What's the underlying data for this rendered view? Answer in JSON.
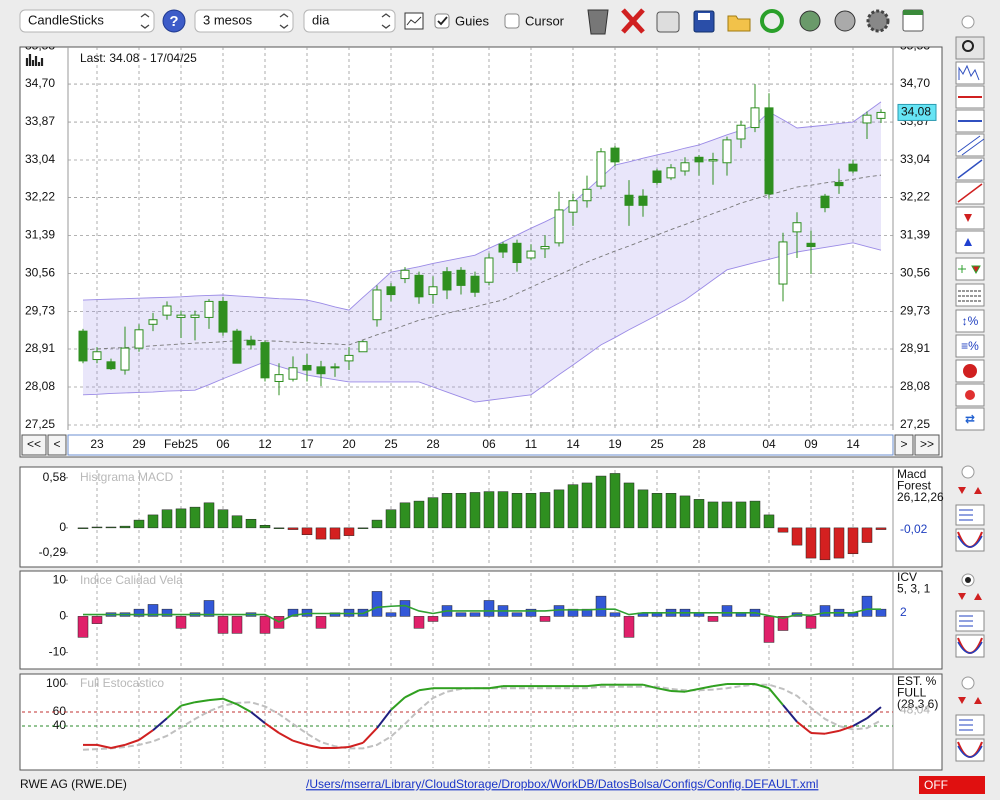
{
  "toolbar": {
    "chart_style": "CandleSticks",
    "period": "3 mesos",
    "interval": "dia",
    "guides": "Guies",
    "cursor": "Cursor"
  },
  "navigation": {
    "first": "<<",
    "previous": "<",
    "next": ">",
    "last": ">>"
  },
  "footer": {
    "symbol": "RWE AG (RWE.DE)",
    "config_path": "/Users/mserra/Library/CloudStorage/Dropbox/WorkDB/DatosBolsa/Configs/Config.DEFAULT.xml",
    "status": "OFF"
  },
  "chart_data": [
    {
      "type": "candlestick",
      "annotation": "Last: 34.08 - 17/04/25",
      "last_label": "34,08",
      "categories": [
        null,
        "23",
        null,
        null,
        "29",
        null,
        null,
        "Feb25",
        null,
        null,
        "06",
        null,
        null,
        "12",
        null,
        null,
        "17",
        null,
        null,
        "20",
        null,
        null,
        "25",
        null,
        null,
        "28",
        null,
        null,
        null,
        "06",
        null,
        null,
        "11",
        null,
        null,
        "14",
        null,
        null,
        "19",
        null,
        null,
        "25",
        null,
        null,
        "28",
        null,
        null,
        null,
        null,
        "04",
        null,
        null,
        "09",
        null,
        null,
        "14",
        null,
        null
      ],
      "open": [
        29.3,
        28.68,
        28.63,
        28.45,
        28.93,
        29.45,
        29.65,
        29.6,
        29.6,
        29.6,
        29.95,
        29.3,
        29.1,
        29.05,
        28.2,
        28.25,
        28.55,
        28.52,
        28.5,
        28.65,
        28.85,
        29.55,
        30.27,
        30.45,
        30.52,
        30.1,
        30.6,
        30.63,
        30.5,
        30.37,
        31.2,
        31.22,
        30.9,
        31.1,
        31.23,
        31.9,
        32.15,
        32.47,
        33.3,
        32.27,
        32.25,
        32.8,
        32.65,
        32.8,
        33.1,
        33.02,
        32.98,
        33.5,
        33.75,
        34.18,
        30.33,
        31.47,
        31.22,
        32.25,
        32.55,
        32.95,
        33.85,
        33.95
      ],
      "high": [
        29.35,
        28.95,
        28.7,
        29.4,
        29.45,
        29.7,
        29.95,
        29.75,
        29.75,
        30.0,
        30.05,
        29.35,
        29.2,
        29.1,
        28.6,
        28.75,
        28.8,
        28.65,
        28.6,
        28.95,
        29.1,
        30.3,
        30.35,
        30.7,
        30.6,
        30.5,
        30.7,
        30.7,
        30.6,
        31.0,
        31.25,
        31.3,
        31.2,
        31.4,
        32.35,
        32.3,
        32.7,
        33.3,
        33.35,
        32.6,
        32.4,
        32.85,
        32.95,
        33.1,
        33.15,
        33.2,
        33.55,
        33.9,
        34.7,
        34.5,
        31.45,
        31.9,
        31.5,
        32.3,
        32.85,
        33.05,
        34.1,
        34.15
      ],
      "low": [
        28.6,
        28.6,
        28.45,
        28.35,
        28.85,
        29.3,
        29.55,
        29.15,
        29.1,
        29.35,
        29.2,
        28.6,
        28.9,
        28.2,
        27.9,
        28.2,
        28.2,
        28.1,
        28.3,
        28.45,
        28.85,
        29.4,
        29.95,
        30.35,
        29.9,
        29.9,
        30.0,
        30.1,
        30.05,
        30.3,
        30.9,
        30.6,
        30.85,
        30.9,
        31.15,
        31.6,
        32.0,
        32.4,
        32.9,
        31.6,
        31.8,
        32.5,
        32.6,
        32.7,
        32.7,
        32.5,
        32.7,
        33.3,
        33.65,
        32.2,
        29.95,
        30.9,
        30.55,
        31.9,
        32.3,
        32.75,
        33.5,
        33.85
      ],
      "close": [
        28.65,
        28.85,
        28.48,
        28.93,
        29.33,
        29.55,
        29.85,
        29.65,
        29.65,
        29.95,
        29.28,
        28.6,
        29.0,
        28.28,
        28.35,
        28.5,
        28.45,
        28.37,
        28.52,
        28.77,
        29.07,
        30.2,
        30.1,
        30.63,
        30.05,
        30.27,
        30.2,
        30.3,
        30.15,
        30.9,
        31.03,
        30.8,
        31.05,
        31.15,
        31.95,
        32.15,
        32.4,
        33.22,
        33.0,
        32.05,
        32.05,
        32.55,
        32.87,
        32.98,
        33.0,
        33.05,
        33.48,
        33.8,
        34.18,
        32.3,
        31.25,
        31.67,
        31.15,
        32.0,
        32.48,
        32.8,
        34.02,
        34.08
      ],
      "upper_band": [
        29.98,
        29.99,
        30.0,
        30.01,
        30.02,
        30.03,
        30.04,
        30.05,
        30.07,
        30.08,
        30.09,
        30.07,
        30.05,
        30.03,
        30.01,
        30.0,
        29.98,
        29.91,
        29.83,
        29.76,
        30.04,
        30.31,
        30.59,
        30.65,
        30.71,
        30.78,
        30.84,
        30.9,
        30.96,
        31.11,
        31.25,
        31.4,
        31.55,
        31.69,
        31.84,
        32.11,
        32.38,
        32.66,
        32.93,
        33.0,
        33.08,
        33.15,
        33.22,
        33.3,
        33.37,
        33.48,
        33.59,
        33.69,
        33.8,
        34.09,
        33.92,
        33.74,
        33.77,
        33.8,
        33.84,
        33.87,
        34.09,
        34.31
      ],
      "middle_band": [
        28.89,
        28.91,
        28.93,
        28.94,
        28.96,
        28.98,
        29.0,
        29.02,
        29.04,
        29.05,
        29.07,
        29.09,
        29.11,
        29.09,
        29.08,
        29.06,
        29.05,
        29.03,
        29.02,
        29.0,
        29.11,
        29.22,
        29.32,
        29.43,
        29.54,
        29.61,
        29.69,
        29.76,
        29.83,
        29.91,
        29.98,
        30.12,
        30.26,
        30.4,
        30.53,
        30.67,
        30.81,
        30.93,
        31.05,
        31.16,
        31.28,
        31.4,
        31.52,
        31.63,
        31.75,
        31.87,
        31.98,
        32.1,
        32.19,
        32.28,
        32.36,
        32.45,
        32.49,
        32.54,
        32.58,
        32.62,
        32.67,
        32.71
      ],
      "lower_band": [
        27.91,
        27.92,
        27.94,
        27.95,
        27.96,
        27.97,
        27.99,
        28.0,
        28.01,
        28.13,
        28.26,
        28.38,
        28.51,
        28.63,
        28.53,
        28.44,
        28.34,
        28.29,
        28.24,
        28.19,
        28.19,
        28.19,
        28.19,
        28.19,
        28.19,
        28.08,
        27.97,
        27.86,
        27.75,
        27.79,
        27.83,
        27.87,
        27.91,
        28.13,
        28.35,
        28.56,
        28.78,
        29.0,
        29.16,
        29.33,
        29.49,
        29.65,
        29.82,
        29.98,
        30.2,
        30.42,
        30.64,
        30.72,
        30.8,
        30.87,
        30.95,
        31.03,
        31.08,
        31.13,
        31.18,
        31.23,
        31.15,
        31.07
      ],
      "ylim": [
        27.14,
        35.51
      ],
      "yticks": [
        {
          "value": 27.25,
          "label": "27,25"
        },
        {
          "value": 28.08,
          "label": "28,08"
        },
        {
          "value": 28.91,
          "label": "28,91"
        },
        {
          "value": 29.73,
          "label": "29,73"
        },
        {
          "value": 30.56,
          "label": "30,56"
        },
        {
          "value": 31.39,
          "label": "31,39"
        },
        {
          "value": 32.22,
          "label": "32,22"
        },
        {
          "value": 33.04,
          "label": "33,04"
        },
        {
          "value": 33.87,
          "label": "33,87"
        },
        {
          "value": 34.7,
          "label": "34,70"
        },
        {
          "value": 35.53,
          "label": "35,53"
        }
      ],
      "grid": true,
      "candle_color": "#2f8f20",
      "band_color": "#9b8be6",
      "middle_color": "#777777",
      "last_color": "#66e4f4"
    },
    {
      "type": "bar",
      "title": "Histgrama MACD",
      "legend": [
        "Macd",
        "Forest",
        "26,12,26"
      ],
      "current_label": "-0,02",
      "values": [
        0.0,
        0.01,
        0.01,
        0.02,
        0.09,
        0.15,
        0.21,
        0.22,
        0.24,
        0.29,
        0.21,
        0.14,
        0.1,
        0.03,
        0.0,
        -0.02,
        -0.08,
        -0.13,
        -0.13,
        -0.09,
        0.0,
        0.09,
        0.21,
        0.29,
        0.31,
        0.35,
        0.4,
        0.4,
        0.41,
        0.42,
        0.42,
        0.4,
        0.4,
        0.41,
        0.44,
        0.5,
        0.52,
        0.6,
        0.63,
        0.52,
        0.44,
        0.4,
        0.4,
        0.37,
        0.33,
        0.3,
        0.3,
        0.3,
        0.31,
        0.15,
        -0.05,
        -0.2,
        -0.35,
        -0.37,
        -0.35,
        -0.3,
        -0.17,
        -0.02
      ],
      "ylim": [
        -0.43,
        0.67
      ],
      "yticks": [
        {
          "value": 0.58,
          "label": "0,58"
        },
        0,
        {
          "value": -0.29,
          "label": "-0,29"
        }
      ],
      "positive_color": "#2f8f20",
      "negative_color": "#d42020",
      "current_color": "#2040c0"
    },
    {
      "type": "bar_line",
      "title": "Indice Calidad Vela",
      "legend": [
        "ICV",
        "5, 3, 1"
      ],
      "current_label": "2",
      "values": [
        -5.8,
        -2,
        1,
        1,
        2,
        3.3,
        2,
        -3.3,
        1,
        4.4,
        -4.7,
        -4.7,
        1,
        -4.7,
        -3.3,
        2,
        2,
        -3.3,
        1,
        2,
        2,
        6.9,
        1,
        4.4,
        -3.3,
        -1.4,
        3,
        1,
        1,
        4.4,
        3,
        1,
        2,
        -1.4,
        3,
        2,
        2,
        5.6,
        1,
        -5.8,
        1,
        1,
        2,
        2,
        1,
        -1.4,
        3,
        1,
        2,
        -7.2,
        -3.9,
        1,
        -3.3,
        3,
        2,
        1,
        5.6,
        2
      ],
      "line_values": [
        0.5,
        0.5,
        0.5,
        0.5,
        0.5,
        0.5,
        0.5,
        0.5,
        0.5,
        0.5,
        0.5,
        0.5,
        0.5,
        0.5,
        -1.5,
        0.3,
        0.8,
        0.8,
        0.8,
        0.8,
        0.8,
        2.5,
        2.8,
        3.0,
        1.5,
        0.8,
        1.5,
        1.5,
        1.5,
        1.5,
        1.5,
        1.5,
        1.5,
        1.5,
        1.8,
        1.8,
        1.8,
        2.0,
        2.0,
        0.5,
        1.0,
        1.0,
        1.0,
        1.0,
        1.0,
        1.0,
        1.0,
        1.0,
        1.0,
        0.2,
        -0.5,
        0.5,
        0.3,
        1.0,
        1.0,
        1.0,
        2.0,
        2.0
      ],
      "ylim": [
        -14,
        12
      ],
      "yticks": [
        10,
        0,
        -10
      ],
      "positive_color": "#3358d8",
      "negative_color": "#e0206a",
      "line_color": "#30a030",
      "current_color": "#2040c0"
    },
    {
      "type": "stochastic",
      "title": "Full Estocastico",
      "legend": [
        "EST. %",
        "FULL",
        "(28,3,6)"
      ],
      "current_label": "48,04",
      "k_values": [
        13,
        13,
        8.6,
        13,
        20,
        34,
        51,
        69,
        74,
        77,
        79,
        71,
        60,
        44,
        30,
        19,
        13,
        8.6,
        8.6,
        10,
        16,
        37,
        63,
        81,
        91,
        94,
        94,
        94,
        94,
        94,
        97,
        97,
        97,
        97,
        97,
        97,
        97,
        99,
        99,
        99,
        99,
        94,
        90,
        89,
        93,
        97,
        100,
        100,
        100,
        94,
        70,
        46,
        30,
        29,
        33,
        40,
        51,
        67
      ],
      "d_values": [
        6,
        7,
        8,
        10,
        13,
        18,
        26,
        38,
        50,
        61,
        69,
        73,
        74,
        68,
        57,
        43,
        29,
        17,
        11,
        8,
        8,
        13,
        25,
        43,
        63,
        80,
        89,
        93,
        94,
        94,
        94,
        94,
        94,
        94,
        94,
        94,
        94,
        96,
        96,
        96,
        96,
        96,
        93,
        91,
        91,
        92,
        94,
        97,
        99,
        99,
        93,
        83,
        66,
        50,
        40,
        35,
        37,
        48.04
      ],
      "ylim": [
        -20,
        110
      ],
      "yticks": [
        100,
        60,
        40
      ],
      "reference_lines": [
        {
          "value": 60,
          "color": "#c03030"
        },
        {
          "value": 40,
          "color": "#2a8a2a"
        }
      ],
      "high_color": "#30a020",
      "mid_color": "#202080",
      "low_color": "#d02020",
      "d_color": "#c0c0c0",
      "current_color": "#b0b0b0"
    }
  ]
}
